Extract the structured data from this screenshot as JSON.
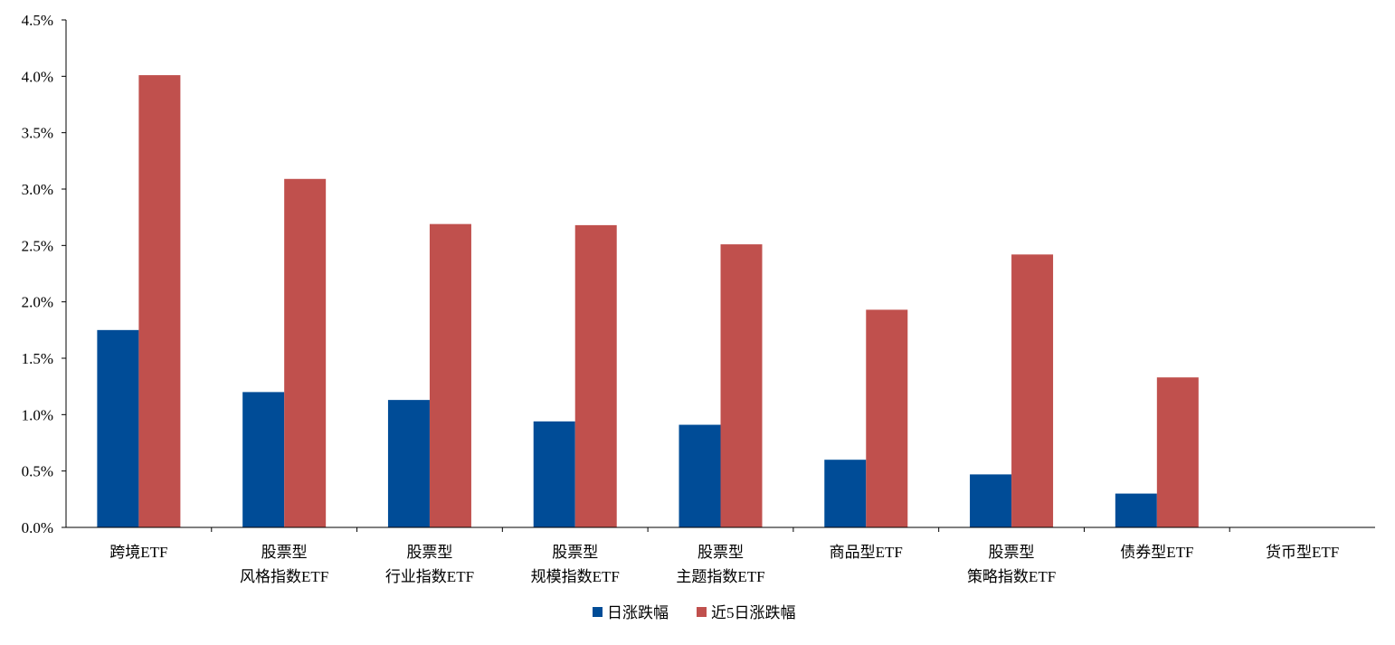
{
  "chart_data": {
    "type": "bar",
    "title": "",
    "xlabel": "",
    "ylabel": "",
    "ylim": [
      0,
      4.5
    ],
    "y_ticks": [
      "0.0%",
      "0.5%",
      "1.0%",
      "1.5%",
      "2.0%",
      "2.5%",
      "3.0%",
      "3.5%",
      "4.0%",
      "4.5%"
    ],
    "grid": false,
    "legend_position": "bottom",
    "categories": [
      [
        "跨境ETF"
      ],
      [
        "股票型",
        "风格指数ETF"
      ],
      [
        "股票型",
        "行业指数ETF"
      ],
      [
        "股票型",
        "规模指数ETF"
      ],
      [
        "股票型",
        "主题指数ETF"
      ],
      [
        "商品型ETF"
      ],
      [
        "股票型",
        "策略指数ETF"
      ],
      [
        "债券型ETF"
      ],
      [
        "货币型ETF"
      ]
    ],
    "series": [
      {
        "name": "日涨跌幅",
        "color": "#004C97",
        "values": [
          1.75,
          1.2,
          1.13,
          0.94,
          0.91,
          0.6,
          0.47,
          0.3,
          0.0
        ]
      },
      {
        "name": "近5日涨跌幅",
        "color": "#C0504D",
        "values": [
          4.01,
          3.09,
          2.69,
          2.68,
          2.51,
          1.93,
          2.42,
          1.33,
          0.0
        ]
      }
    ]
  }
}
